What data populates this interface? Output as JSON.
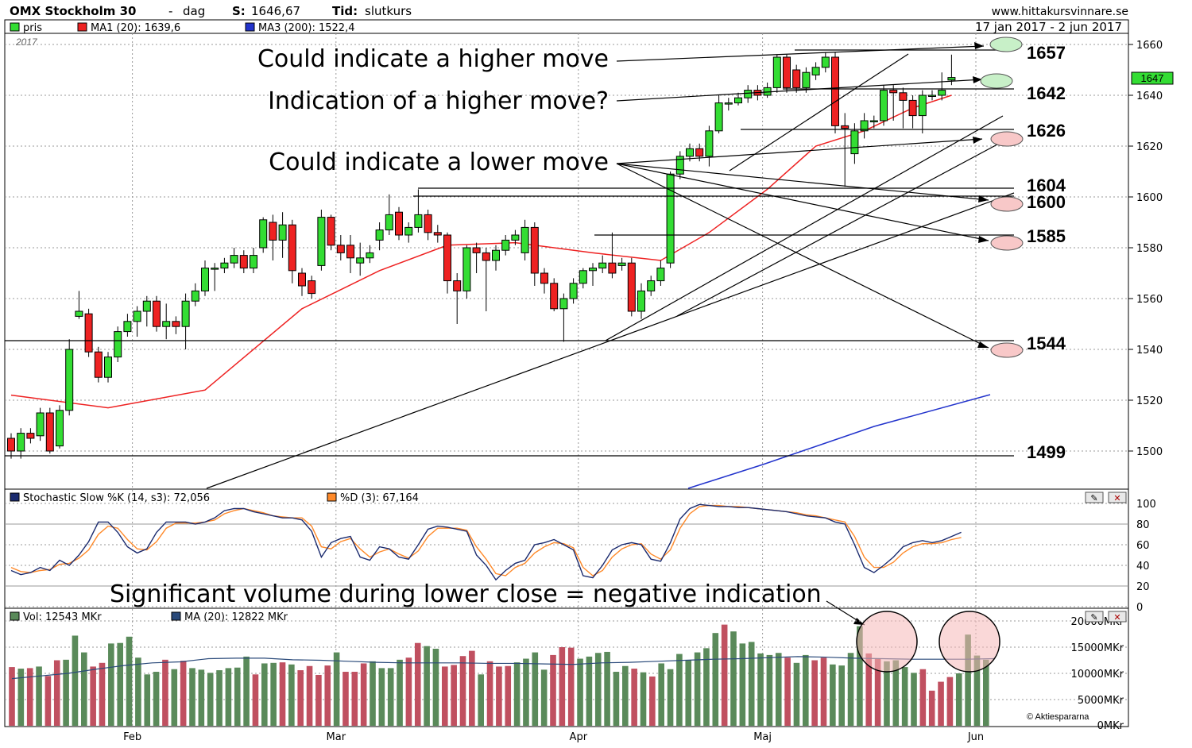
{
  "header": {
    "index_name": "OMX Stockholm 30",
    "separator": "-",
    "period": "dag",
    "last_label": "S:",
    "last_value": "1646,67",
    "time_label": "Tid:",
    "time_value": "slutkurs",
    "site": "www.hittakursvinnare.se",
    "range": "17 jan 2017 - 2 jun 2017",
    "year": "2017",
    "legend": [
      {
        "label": "pris",
        "color": "#33dd33"
      },
      {
        "label": "MA1 (20): 1639,6",
        "color": "#ee2222"
      },
      {
        "label": "MA3 (200): 1522,4",
        "color": "#2233cc"
      }
    ],
    "last_badge": "1647"
  },
  "annotations": {
    "higher_move": "Could indicate a higher move",
    "higher_move_q": "Indication of a higher move?",
    "lower_move": "Could indicate a lower move",
    "volume_note": "Significant volume during lower close = negative indication",
    "levels": [
      "1657",
      "1642",
      "1626",
      "1604",
      "1600",
      "1585",
      "1544",
      "1499"
    ]
  },
  "price_axis": {
    "ticks": [
      "1500",
      "1520",
      "1540",
      "1560",
      "1580",
      "1600",
      "1620",
      "1640",
      "1660"
    ]
  },
  "stoch": {
    "k_label": "Stochastic Slow %K (14, s3): 72,056",
    "d_label": "%D (3): 67,164",
    "k_color": "#1a2a6e",
    "d_color": "#ff8a2a",
    "ticks": [
      "0",
      "20",
      "40",
      "60",
      "80",
      "100"
    ]
  },
  "volume": {
    "vol_label": "Vol: 12543 MKr",
    "ma_label": "MA (20): 12822 MKr",
    "up_color": "#5a8a5a",
    "down_color": "#c05060",
    "ticks": [
      "0MKr",
      "5000MKr",
      "10000MKr",
      "15000MKr",
      "20000MKr"
    ],
    "source": "© Aktiespararna"
  },
  "months": [
    "Feb",
    "Mar",
    "Apr",
    "Maj",
    "Jun"
  ],
  "chart_data": {
    "type": "candlestick",
    "title": "OMX Stockholm 30 - dag",
    "ylim": [
      1490,
      1664
    ],
    "candles": [
      {
        "o": 1505,
        "c": 1500,
        "h": 1507,
        "l": 1497
      },
      {
        "o": 1500,
        "c": 1507,
        "h": 1509,
        "l": 1497
      },
      {
        "o": 1507,
        "c": 1505,
        "h": 1509,
        "l": 1503
      },
      {
        "o": 1506,
        "c": 1515,
        "h": 1517,
        "l": 1504
      },
      {
        "o": 1515,
        "c": 1500,
        "h": 1517,
        "l": 1499
      },
      {
        "o": 1502,
        "c": 1516,
        "h": 1518,
        "l": 1501
      },
      {
        "o": 1516,
        "c": 1540,
        "h": 1544,
        "l": 1514
      },
      {
        "o": 1553,
        "c": 1555,
        "h": 1563,
        "l": 1552
      },
      {
        "o": 1554,
        "c": 1539,
        "h": 1556,
        "l": 1537
      },
      {
        "o": 1539,
        "c": 1529,
        "h": 1541,
        "l": 1527
      },
      {
        "o": 1529,
        "c": 1537,
        "h": 1539,
        "l": 1527
      },
      {
        "o": 1537,
        "c": 1547,
        "h": 1549,
        "l": 1535
      },
      {
        "o": 1547,
        "c": 1551,
        "h": 1554,
        "l": 1545
      },
      {
        "o": 1551,
        "c": 1555,
        "h": 1557,
        "l": 1545
      },
      {
        "o": 1555,
        "c": 1559,
        "h": 1561,
        "l": 1549
      },
      {
        "o": 1559,
        "c": 1549,
        "h": 1561,
        "l": 1547
      },
      {
        "o": 1549,
        "c": 1551,
        "h": 1558,
        "l": 1544
      },
      {
        "o": 1551,
        "c": 1549,
        "h": 1553,
        "l": 1546
      },
      {
        "o": 1549,
        "c": 1559,
        "h": 1562,
        "l": 1540
      },
      {
        "o": 1559,
        "c": 1563,
        "h": 1566,
        "l": 1557
      },
      {
        "o": 1563,
        "c": 1572,
        "h": 1575,
        "l": 1561
      },
      {
        "o": 1572,
        "c": 1572,
        "h": 1574,
        "l": 1563
      },
      {
        "o": 1572,
        "c": 1574,
        "h": 1576,
        "l": 1570
      },
      {
        "o": 1574,
        "c": 1577,
        "h": 1580,
        "l": 1572
      },
      {
        "o": 1577,
        "c": 1572,
        "h": 1579,
        "l": 1570
      },
      {
        "o": 1572,
        "c": 1577,
        "h": 1580,
        "l": 1570
      },
      {
        "o": 1580,
        "c": 1591,
        "h": 1592,
        "l": 1578
      },
      {
        "o": 1590,
        "c": 1583,
        "h": 1593,
        "l": 1575
      },
      {
        "o": 1583,
        "c": 1589,
        "h": 1594,
        "l": 1576
      },
      {
        "o": 1589,
        "c": 1571,
        "h": 1591,
        "l": 1566
      },
      {
        "o": 1570,
        "c": 1565,
        "h": 1572,
        "l": 1561
      },
      {
        "o": 1567,
        "c": 1562,
        "h": 1569,
        "l": 1560
      },
      {
        "o": 1573,
        "c": 1592,
        "h": 1595,
        "l": 1571
      },
      {
        "o": 1592,
        "c": 1581,
        "h": 1593,
        "l": 1579
      },
      {
        "o": 1581,
        "c": 1578,
        "h": 1585,
        "l": 1575
      },
      {
        "o": 1581,
        "c": 1576,
        "h": 1585,
        "l": 1570
      },
      {
        "o": 1574,
        "c": 1576,
        "h": 1582,
        "l": 1569
      },
      {
        "o": 1576,
        "c": 1578,
        "h": 1581,
        "l": 1574
      },
      {
        "o": 1583,
        "c": 1587,
        "h": 1590,
        "l": 1579
      },
      {
        "o": 1587,
        "c": 1593,
        "h": 1601,
        "l": 1585
      },
      {
        "o": 1594,
        "c": 1585,
        "h": 1596,
        "l": 1583
      },
      {
        "o": 1585,
        "c": 1588,
        "h": 1590,
        "l": 1582
      },
      {
        "o": 1588,
        "c": 1593,
        "h": 1603,
        "l": 1586
      },
      {
        "o": 1593,
        "c": 1586,
        "h": 1595,
        "l": 1583
      },
      {
        "o": 1586,
        "c": 1585,
        "h": 1589,
        "l": 1582
      },
      {
        "o": 1585,
        "c": 1567,
        "h": 1586,
        "l": 1562
      },
      {
        "o": 1567,
        "c": 1563,
        "h": 1570,
        "l": 1550
      },
      {
        "o": 1563,
        "c": 1580,
        "h": 1581,
        "l": 1560
      },
      {
        "o": 1580,
        "c": 1578,
        "h": 1582,
        "l": 1570
      },
      {
        "o": 1578,
        "c": 1575,
        "h": 1580,
        "l": 1555
      },
      {
        "o": 1575,
        "c": 1579,
        "h": 1581,
        "l": 1571
      },
      {
        "o": 1579,
        "c": 1583,
        "h": 1585,
        "l": 1577
      },
      {
        "o": 1583,
        "c": 1585,
        "h": 1587,
        "l": 1581
      },
      {
        "o": 1578,
        "c": 1588,
        "h": 1591,
        "l": 1575
      },
      {
        "o": 1588,
        "c": 1570,
        "h": 1590,
        "l": 1565
      },
      {
        "o": 1570,
        "c": 1566,
        "h": 1572,
        "l": 1562
      },
      {
        "o": 1566,
        "c": 1556,
        "h": 1568,
        "l": 1555
      },
      {
        "o": 1556,
        "c": 1560,
        "h": 1562,
        "l": 1543
      },
      {
        "o": 1560,
        "c": 1566,
        "h": 1568,
        "l": 1558
      },
      {
        "o": 1566,
        "c": 1571,
        "h": 1572,
        "l": 1564
      },
      {
        "o": 1571,
        "c": 1572,
        "h": 1574,
        "l": 1565
      },
      {
        "o": 1572,
        "c": 1574,
        "h": 1577,
        "l": 1570
      },
      {
        "o": 1574,
        "c": 1570,
        "h": 1586,
        "l": 1568
      },
      {
        "o": 1573,
        "c": 1574,
        "h": 1576,
        "l": 1571
      },
      {
        "o": 1574,
        "c": 1555,
        "h": 1576,
        "l": 1553
      },
      {
        "o": 1555,
        "c": 1563,
        "h": 1566,
        "l": 1552
      },
      {
        "o": 1563,
        "c": 1567,
        "h": 1569,
        "l": 1561
      },
      {
        "o": 1567,
        "c": 1572,
        "h": 1575,
        "l": 1565
      },
      {
        "o": 1574,
        "c": 1609,
        "h": 1610,
        "l": 1572
      },
      {
        "o": 1609,
        "c": 1616,
        "h": 1618,
        "l": 1607
      },
      {
        "o": 1616,
        "c": 1619,
        "h": 1621,
        "l": 1614
      },
      {
        "o": 1619,
        "c": 1616,
        "h": 1621,
        "l": 1614
      },
      {
        "o": 1616,
        "c": 1626,
        "h": 1628,
        "l": 1612
      },
      {
        "o": 1626,
        "c": 1637,
        "h": 1640,
        "l": 1625
      },
      {
        "o": 1637,
        "c": 1637,
        "h": 1639,
        "l": 1634
      },
      {
        "o": 1637,
        "c": 1639,
        "h": 1641,
        "l": 1636
      },
      {
        "o": 1639,
        "c": 1642,
        "h": 1644,
        "l": 1637
      },
      {
        "o": 1642,
        "c": 1640,
        "h": 1644,
        "l": 1638
      },
      {
        "o": 1640,
        "c": 1643,
        "h": 1645,
        "l": 1639
      },
      {
        "o": 1643,
        "c": 1655,
        "h": 1656,
        "l": 1641
      },
      {
        "o": 1655,
        "c": 1643,
        "h": 1656,
        "l": 1641
      },
      {
        "o": 1650,
        "c": 1643,
        "h": 1652,
        "l": 1641
      },
      {
        "o": 1643,
        "c": 1649,
        "h": 1651,
        "l": 1641
      },
      {
        "o": 1648,
        "c": 1651,
        "h": 1653,
        "l": 1646
      },
      {
        "o": 1651,
        "c": 1655,
        "h": 1657,
        "l": 1649
      },
      {
        "o": 1655,
        "c": 1628,
        "h": 1657,
        "l": 1625
      },
      {
        "o": 1628,
        "c": 1627,
        "h": 1633,
        "l": 1604
      },
      {
        "o": 1617,
        "c": 1626,
        "h": 1629,
        "l": 1613
      },
      {
        "o": 1626,
        "c": 1630,
        "h": 1633,
        "l": 1623
      },
      {
        "o": 1630,
        "c": 1630,
        "h": 1632,
        "l": 1627
      },
      {
        "o": 1630,
        "c": 1642,
        "h": 1644,
        "l": 1628
      },
      {
        "o": 1642,
        "c": 1641,
        "h": 1644,
        "l": 1630
      },
      {
        "o": 1641,
        "c": 1638,
        "h": 1643,
        "l": 1627
      },
      {
        "o": 1638,
        "c": 1632,
        "h": 1640,
        "l": 1627
      },
      {
        "o": 1632,
        "c": 1640,
        "h": 1642,
        "l": 1625
      },
      {
        "o": 1640,
        "c": 1640,
        "h": 1642,
        "l": 1638
      },
      {
        "o": 1640,
        "c": 1642,
        "h": 1649,
        "l": 1638
      },
      {
        "o": 1646,
        "c": 1647,
        "h": 1656,
        "l": 1644
      }
    ],
    "ma20": [
      [
        0,
        1522
      ],
      [
        10,
        1517
      ],
      [
        20,
        1524
      ],
      [
        30,
        1556
      ],
      [
        38,
        1571
      ],
      [
        45,
        1581
      ],
      [
        52,
        1582
      ],
      [
        60,
        1578
      ],
      [
        67,
        1575
      ],
      [
        72,
        1586
      ],
      [
        78,
        1603
      ],
      [
        83,
        1620
      ],
      [
        88,
        1626
      ],
      [
        93,
        1635
      ],
      [
        97,
        1640
      ]
    ],
    "ma200": [
      [
        84,
        1490
      ],
      [
        92,
        1506
      ],
      [
        100,
        1516
      ],
      [
        97,
        1522
      ]
    ],
    "stoch_k": [
      35,
      31,
      33,
      38,
      35,
      45,
      40,
      50,
      63,
      82,
      82,
      72,
      58,
      52,
      56,
      72,
      82,
      82,
      82,
      80,
      82,
      86,
      93,
      95,
      95,
      92,
      90,
      88,
      86,
      86,
      84,
      73,
      48,
      62,
      66,
      68,
      48,
      45,
      58,
      56,
      48,
      46,
      60,
      75,
      78,
      77,
      75,
      73,
      50,
      40,
      26,
      35,
      42,
      45,
      60,
      62,
      65,
      60,
      55,
      30,
      28,
      40,
      55,
      60,
      62,
      60,
      46,
      44,
      62,
      85,
      95,
      99,
      98,
      97,
      97,
      96,
      96,
      95,
      94,
      93,
      92,
      90,
      88,
      87,
      86,
      82,
      80,
      60,
      38,
      33,
      40,
      48,
      58,
      62,
      64,
      62,
      64,
      68,
      72
    ],
    "stoch_d": [
      38,
      34,
      33,
      35,
      36,
      41,
      42,
      47,
      55,
      70,
      78,
      76,
      65,
      56,
      55,
      63,
      76,
      81,
      81,
      81,
      82,
      84,
      90,
      93,
      95,
      93,
      91,
      88,
      87,
      86,
      86,
      78,
      58,
      56,
      63,
      66,
      56,
      48,
      53,
      56,
      51,
      47,
      54,
      68,
      76,
      76,
      76,
      74,
      58,
      46,
      32,
      30,
      38,
      42,
      52,
      58,
      62,
      61,
      57,
      38,
      30,
      35,
      48,
      56,
      60,
      61,
      51,
      46,
      55,
      76,
      90,
      97,
      98,
      98,
      97,
      97,
      96,
      95,
      94,
      93,
      92,
      91,
      89,
      88,
      86,
      84,
      82,
      68,
      48,
      38,
      38,
      43,
      52,
      58,
      61,
      61,
      62,
      65,
      67
    ],
    "volume": [
      11200,
      10900,
      11000,
      11300,
      9500,
      12500,
      12600,
      17200,
      14000,
      11300,
      12000,
      15700,
      15800,
      17000,
      13000,
      9800,
      10300,
      12600,
      10800,
      12400,
      11000,
      10700,
      10100,
      10600,
      11000,
      11100,
      13200,
      9800,
      11900,
      12000,
      12100,
      11700,
      10600,
      11400,
      9700,
      11500,
      14000,
      10300,
      10300,
      11900,
      12300,
      11000,
      11000,
      12600,
      13000,
      15800,
      15200,
      14700,
      11300,
      11600,
      13300,
      14300,
      9800,
      12300,
      11300,
      11400,
      12100,
      12800,
      14000,
      10700,
      13500,
      15000,
      14900,
      12800,
      13200,
      13900,
      14100,
      10300,
      11400,
      10900,
      10200,
      9400,
      11900,
      10800,
      13700,
      12500,
      14000,
      14800,
      17700,
      19300,
      18000,
      15700,
      16000,
      13800,
      13500,
      13900,
      13000,
      12000,
      13500,
      12500,
      13000,
      11700,
      11500,
      13900,
      19000,
      13800,
      12800,
      12300,
      12500,
      11200,
      10100,
      10800,
      6700,
      8400,
      9300,
      10000,
      17400,
      13400,
      12600
    ],
    "volume_ma": [
      9000,
      9500,
      10000,
      10800,
      11500,
      12000,
      12200,
      12800,
      12900,
      12900,
      12600,
      12500,
      12300,
      12100,
      12000,
      12000,
      12000,
      11900,
      11900,
      11800,
      11700,
      12000,
      12100,
      12300,
      12500,
      12700,
      12800,
      13000,
      13200,
      13100,
      12900,
      12800,
      12700,
      12700,
      12700,
      12800
    ]
  }
}
